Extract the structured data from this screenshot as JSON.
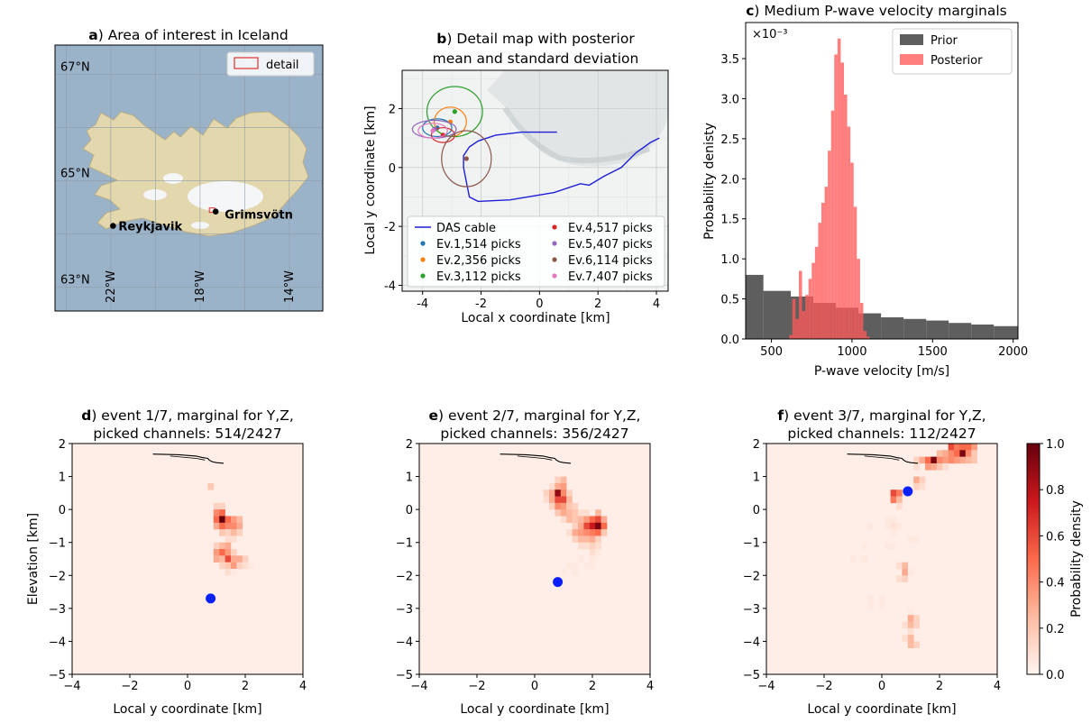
{
  "panel_a": {
    "letter": "a",
    "title": ") Area of interest in Iceland",
    "legend_label": "detail",
    "places": [
      {
        "name": "Reykjavik",
        "lon": -21.9,
        "lat": 64.15
      },
      {
        "name": "Grimsvötn",
        "lon": -17.3,
        "lat": 64.42
      }
    ],
    "lat_labels": [
      {
        "lat": 67,
        "label": "67°N"
      },
      {
        "lat": 65,
        "label": "65°N"
      },
      {
        "lat": 63,
        "label": "63°N"
      }
    ],
    "lon_labels": [
      {
        "lon": -22,
        "label": "22°W"
      },
      {
        "lon": -18,
        "label": "18°W"
      },
      {
        "lon": -14,
        "label": "14°W"
      }
    ],
    "colors": {
      "ocean": "#9ab3c9",
      "land": "#e2d7ad",
      "ice": "#f4f6f8",
      "detail_box": "#e03030"
    }
  },
  "chart_data": [
    {
      "id": "b",
      "type": "line",
      "letter": "b",
      "title_lines": [
        ") Detail map with posterior",
        "mean and standard deviation"
      ],
      "xlabel": "Local x coordinate [km]",
      "ylabel": "Local y coordinate [km]",
      "xlim": [
        -4.7,
        4.4
      ],
      "ylim": [
        -4.2,
        3.3
      ],
      "xticks": [
        -4,
        -2,
        0,
        2,
        4
      ],
      "yticks": [
        -4,
        -2,
        0,
        2
      ],
      "grid": true,
      "legend_position": "lower-center",
      "cable": {
        "name": "DAS cable",
        "color": "#1f1fd6",
        "x": [
          0.6,
          -0.6,
          -1.5,
          -2.1,
          -2.4,
          -2.6,
          -2.6,
          -2.5,
          -2.4,
          -2.1,
          -1.0,
          0.5,
          1.4,
          1.7,
          2.2,
          2.8,
          3.3,
          3.8,
          4.1
        ],
        "y": [
          1.2,
          1.2,
          1.1,
          0.9,
          0.7,
          0.4,
          0.0,
          -0.5,
          -1.0,
          -1.15,
          -1.1,
          -0.85,
          -0.55,
          -0.6,
          -0.3,
          0.0,
          0.5,
          0.85,
          1.0
        ]
      },
      "events": [
        {
          "name": "Ev.1,514 picks",
          "color": "#1f77b4",
          "x": -3.5,
          "y": 1.35,
          "rx": 0.5,
          "ry": 0.3
        },
        {
          "name": "Ev.2,356 picks",
          "color": "#ff7f0e",
          "x": -3.05,
          "y": 1.55,
          "rx": 0.55,
          "ry": 0.5
        },
        {
          "name": "Ev.3,112 picks",
          "color": "#2ca02c",
          "x": -2.9,
          "y": 1.9,
          "rx": 0.95,
          "ry": 0.85
        },
        {
          "name": "Ev.4,517 picks",
          "color": "#d62728",
          "x": -3.3,
          "y": 1.1,
          "rx": 0.4,
          "ry": 0.25
        },
        {
          "name": "Ev.5,407 picks",
          "color": "#9467bd",
          "x": -3.6,
          "y": 1.3,
          "rx": 0.75,
          "ry": 0.3
        },
        {
          "name": "Ev.6,114 picks",
          "color": "#8c564b",
          "x": -2.5,
          "y": 0.3,
          "rx": 0.85,
          "ry": 0.95
        },
        {
          "name": "Ev.7,407 picks",
          "color": "#e377c2",
          "x": -3.65,
          "y": 1.25,
          "rx": 0.5,
          "ry": 0.25
        }
      ]
    },
    {
      "id": "c",
      "type": "bar",
      "letter": "c",
      "title": ") Medium P-wave velocity marginals",
      "xlabel": "P-wave velocity [m/s]",
      "ylabel": "Probability denisty",
      "y_scale_label": "×10⁻³",
      "xlim": [
        340,
        2030
      ],
      "ylim": [
        0,
        3.95
      ],
      "xticks": [
        500,
        1000,
        1500,
        2000
      ],
      "yticks": [
        0.0,
        0.5,
        1.0,
        1.5,
        2.0,
        2.5,
        3.0,
        3.5
      ],
      "legend_position": "top-right",
      "prior": {
        "name": "Prior",
        "color": "#555555",
        "edges": [
          340,
          450,
          620,
          760,
          900,
          1040,
          1180,
          1320,
          1460,
          1600,
          1740,
          1880,
          2030
        ],
        "values": [
          0.8,
          0.6,
          0.53,
          0.45,
          0.39,
          0.32,
          0.27,
          0.25,
          0.23,
          0.2,
          0.18,
          0.16
        ]
      },
      "posterior": {
        "name": "Posterior",
        "color": "#ff5a5a",
        "bin_start": 610,
        "bin_width": 20,
        "values": [
          0.05,
          0.5,
          0.25,
          0.85,
          0.35,
          0.55,
          0.75,
          0.95,
          1.15,
          1.45,
          1.7,
          1.9,
          2.35,
          2.85,
          3.55,
          3.75,
          3.45,
          3.05,
          2.65,
          2.2,
          1.65,
          1.0,
          0.45,
          0.1,
          0.03
        ]
      }
    },
    {
      "id": "d",
      "type": "heatmap",
      "letter": "d",
      "title_lines": [
        ") event 1/7, marginal for Y,Z,",
        "picked channels: 514/2427"
      ],
      "xlabel": "Local y coordinate [km]",
      "ylabel": "Elevation [km]",
      "xlim": [
        -4,
        4
      ],
      "ylim": [
        -5,
        2
      ],
      "xticks": [
        -4,
        -2,
        0,
        2,
        4
      ],
      "yticks": [
        -5,
        -4,
        -3,
        -2,
        -1,
        0,
        1,
        2
      ],
      "background_density": 0.03,
      "true_location": {
        "x": 0.8,
        "y": -2.7
      },
      "cells": [
        [
          0.8,
          0.7,
          0.2
        ],
        [
          1.0,
          0.1,
          0.15
        ],
        [
          1.2,
          0.1,
          0.15
        ],
        [
          1.0,
          -0.1,
          0.4
        ],
        [
          1.2,
          -0.1,
          0.5
        ],
        [
          1.0,
          -0.3,
          0.5
        ],
        [
          1.2,
          -0.3,
          1.0
        ],
        [
          1.4,
          -0.3,
          0.5
        ],
        [
          1.6,
          -0.3,
          0.35
        ],
        [
          1.8,
          -0.3,
          0.25
        ],
        [
          1.0,
          -0.5,
          0.3
        ],
        [
          1.2,
          -0.5,
          0.5
        ],
        [
          1.4,
          -0.5,
          0.4
        ],
        [
          1.6,
          -0.5,
          0.4
        ],
        [
          1.8,
          -0.5,
          0.3
        ],
        [
          1.2,
          -0.7,
          0.2
        ],
        [
          1.4,
          -0.7,
          0.15
        ],
        [
          1.6,
          -0.7,
          0.25
        ],
        [
          1.8,
          -0.7,
          0.15
        ],
        [
          1.4,
          -0.9,
          0.1
        ],
        [
          1.6,
          -0.9,
          0.1
        ],
        [
          1.0,
          -1.1,
          0.15
        ],
        [
          1.2,
          -1.1,
          0.25
        ],
        [
          1.4,
          -1.1,
          0.3
        ],
        [
          1.0,
          -1.3,
          0.35
        ],
        [
          1.2,
          -1.3,
          0.5
        ],
        [
          1.4,
          -1.3,
          0.35
        ],
        [
          1.6,
          -1.3,
          0.15
        ],
        [
          1.0,
          -1.5,
          0.3
        ],
        [
          1.2,
          -1.5,
          0.25
        ],
        [
          1.4,
          -1.5,
          0.6
        ],
        [
          1.6,
          -1.5,
          0.3
        ],
        [
          1.8,
          -1.5,
          0.3
        ],
        [
          2.0,
          -1.5,
          0.15
        ],
        [
          1.2,
          -1.7,
          0.15
        ],
        [
          1.4,
          -1.7,
          0.2
        ],
        [
          1.6,
          -1.7,
          0.35
        ],
        [
          1.8,
          -1.7,
          0.15
        ],
        [
          2.0,
          -1.7,
          0.1
        ],
        [
          2.2,
          -1.7,
          0.05
        ],
        [
          1.4,
          -1.9,
          0.1
        ],
        [
          1.6,
          -1.9,
          0.05
        ]
      ]
    },
    {
      "id": "e",
      "type": "heatmap",
      "letter": "e",
      "title_lines": [
        ") event 2/7, marginal for Y,Z,",
        "picked channels: 356/2427"
      ],
      "xlabel": "Local y coordinate [km]",
      "ylabel": "",
      "xlim": [
        -4,
        4
      ],
      "ylim": [
        -5,
        2
      ],
      "xticks": [
        -4,
        -2,
        0,
        2,
        4
      ],
      "yticks": [
        -5,
        -4,
        -3,
        -2,
        -1,
        0,
        1,
        2
      ],
      "background_density": 0.03,
      "true_location": {
        "x": 0.8,
        "y": -2.2
      },
      "cells": [
        [
          0.8,
          0.9,
          0.15
        ],
        [
          1.0,
          0.9,
          0.25
        ],
        [
          0.6,
          0.7,
          0.1
        ],
        [
          0.8,
          0.7,
          0.3
        ],
        [
          1.0,
          0.7,
          0.35
        ],
        [
          0.4,
          0.5,
          0.15
        ],
        [
          0.6,
          0.5,
          0.3
        ],
        [
          0.8,
          0.5,
          0.9
        ],
        [
          1.0,
          0.5,
          0.4
        ],
        [
          1.2,
          0.5,
          0.15
        ],
        [
          0.4,
          0.3,
          0.1
        ],
        [
          0.6,
          0.3,
          0.3
        ],
        [
          0.8,
          0.3,
          0.6
        ],
        [
          1.0,
          0.3,
          0.6
        ],
        [
          1.2,
          0.3,
          0.25
        ],
        [
          0.6,
          0.1,
          0.15
        ],
        [
          0.8,
          0.1,
          0.4
        ],
        [
          1.0,
          0.1,
          0.35
        ],
        [
          1.2,
          0.1,
          0.2
        ],
        [
          1.4,
          0.1,
          0.15
        ],
        [
          0.8,
          -0.1,
          0.2
        ],
        [
          1.0,
          -0.1,
          0.3
        ],
        [
          1.2,
          -0.1,
          0.25
        ],
        [
          1.4,
          -0.1,
          0.2
        ],
        [
          1.6,
          -0.1,
          0.1
        ],
        [
          1.8,
          -0.1,
          0.1
        ],
        [
          2.2,
          -0.1,
          0.25
        ],
        [
          1.0,
          -0.3,
          0.1
        ],
        [
          1.2,
          -0.3,
          0.25
        ],
        [
          1.4,
          -0.3,
          0.2
        ],
        [
          1.6,
          -0.3,
          0.25
        ],
        [
          1.8,
          -0.3,
          0.35
        ],
        [
          2.0,
          -0.3,
          0.5
        ],
        [
          2.2,
          -0.3,
          0.6
        ],
        [
          2.4,
          -0.3,
          0.3
        ],
        [
          1.4,
          -0.5,
          0.15
        ],
        [
          1.6,
          -0.5,
          0.3
        ],
        [
          1.8,
          -0.5,
          0.6
        ],
        [
          2.0,
          -0.5,
          0.75
        ],
        [
          2.2,
          -0.5,
          0.95
        ],
        [
          2.4,
          -0.5,
          0.5
        ],
        [
          1.2,
          -0.7,
          0.1
        ],
        [
          1.4,
          -0.7,
          0.3
        ],
        [
          1.6,
          -0.7,
          0.35
        ],
        [
          1.8,
          -0.7,
          0.4
        ],
        [
          2.0,
          -0.7,
          0.45
        ],
        [
          2.2,
          -0.7,
          0.5
        ],
        [
          2.4,
          -0.7,
          0.2
        ],
        [
          1.4,
          -0.9,
          0.15
        ],
        [
          1.6,
          -0.9,
          0.25
        ],
        [
          1.8,
          -0.9,
          0.25
        ],
        [
          2.0,
          -0.9,
          0.3
        ],
        [
          2.2,
          -0.9,
          0.15
        ],
        [
          1.6,
          -1.1,
          0.1
        ],
        [
          1.8,
          -1.1,
          0.1
        ],
        [
          2.0,
          -1.1,
          0.15
        ],
        [
          2.2,
          -1.1,
          0.1
        ],
        [
          2.0,
          -1.3,
          0.1
        ],
        [
          2.2,
          -1.3,
          0.05
        ],
        [
          1.6,
          -1.5,
          0.05
        ],
        [
          2.0,
          -1.5,
          0.05
        ],
        [
          1.2,
          -1.7,
          0.05
        ],
        [
          1.4,
          -1.7,
          0.05
        ],
        [
          1.8,
          -1.7,
          0.05
        ],
        [
          2.0,
          -1.7,
          0.05
        ],
        [
          1.0,
          -1.9,
          0.05
        ],
        [
          1.4,
          -1.9,
          0.05
        ]
      ]
    },
    {
      "id": "f",
      "type": "heatmap",
      "letter": "f",
      "title_lines": [
        ") event 3/7, marginal for Y,Z,",
        "picked channels: 112/2427"
      ],
      "xlabel": "Local y coordinate [km]",
      "ylabel": "",
      "colorbar_label": "Probability density",
      "colorbar_ticks": [
        0.0,
        0.2,
        0.4,
        0.6,
        0.8,
        1.0
      ],
      "xlim": [
        -4,
        4
      ],
      "ylim": [
        -5,
        2
      ],
      "xticks": [
        -4,
        -2,
        0,
        2,
        4
      ],
      "yticks": [
        -5,
        -4,
        -3,
        -2,
        -1,
        0,
        1,
        2
      ],
      "background_density": 0.03,
      "true_location": {
        "x": 0.9,
        "y": 0.55
      },
      "cells": [
        [
          2.4,
          1.9,
          0.6
        ],
        [
          2.6,
          1.9,
          0.45
        ],
        [
          2.8,
          1.9,
          0.5
        ],
        [
          3.0,
          1.9,
          0.5
        ],
        [
          3.2,
          1.9,
          0.35
        ],
        [
          2.0,
          1.7,
          0.25
        ],
        [
          2.2,
          1.7,
          0.3
        ],
        [
          2.4,
          1.7,
          0.4
        ],
        [
          2.6,
          1.7,
          0.5
        ],
        [
          2.8,
          1.7,
          0.95
        ],
        [
          3.0,
          1.7,
          0.4
        ],
        [
          3.2,
          1.7,
          0.2
        ],
        [
          1.2,
          1.5,
          0.15
        ],
        [
          1.4,
          1.5,
          0.3
        ],
        [
          1.6,
          1.5,
          0.5
        ],
        [
          1.8,
          1.5,
          0.95
        ],
        [
          2.0,
          1.5,
          0.4
        ],
        [
          2.2,
          1.5,
          0.35
        ],
        [
          2.4,
          1.5,
          0.4
        ],
        [
          2.6,
          1.5,
          0.35
        ],
        [
          2.8,
          1.5,
          0.3
        ],
        [
          3.0,
          1.5,
          0.25
        ],
        [
          3.2,
          1.5,
          0.2
        ],
        [
          1.2,
          1.3,
          0.1
        ],
        [
          1.6,
          1.3,
          0.35
        ],
        [
          1.8,
          1.3,
          0.3
        ],
        [
          2.0,
          1.3,
          0.2
        ],
        [
          2.2,
          1.3,
          0.1
        ],
        [
          1.2,
          0.9,
          0.3
        ],
        [
          1.4,
          0.9,
          0.15
        ],
        [
          1.2,
          0.7,
          0.15
        ],
        [
          1.4,
          0.7,
          0.1
        ],
        [
          0.4,
          0.5,
          0.6
        ],
        [
          0.6,
          0.5,
          0.45
        ],
        [
          0.4,
          0.3,
          0.45
        ],
        [
          0.6,
          0.3,
          0.25
        ],
        [
          0.6,
          0.1,
          0.1
        ],
        [
          0.2,
          -0.3,
          0.05
        ],
        [
          0.4,
          -0.3,
          0.05
        ],
        [
          -0.4,
          -0.5,
          0.05
        ],
        [
          0.2,
          -0.5,
          0.05
        ],
        [
          0.4,
          -0.5,
          0.08
        ],
        [
          0.6,
          -0.5,
          0.05
        ],
        [
          0.4,
          -0.7,
          0.05
        ],
        [
          1.0,
          -0.9,
          0.05
        ],
        [
          1.2,
          -0.9,
          0.05
        ],
        [
          -0.6,
          -1.1,
          0.05
        ],
        [
          0.2,
          -1.1,
          0.05
        ],
        [
          0.4,
          -1.1,
          0.05
        ],
        [
          -1.0,
          -1.5,
          0.05
        ],
        [
          -0.6,
          -1.5,
          0.05
        ],
        [
          0.6,
          -1.7,
          0.1
        ],
        [
          0.8,
          -1.7,
          0.25
        ],
        [
          0.8,
          -1.9,
          0.3
        ],
        [
          1.0,
          -1.9,
          0.05
        ],
        [
          0.6,
          -2.1,
          0.1
        ],
        [
          0.8,
          -2.1,
          0.15
        ],
        [
          -0.4,
          -2.7,
          0.05
        ],
        [
          0.0,
          -2.7,
          0.05
        ],
        [
          -0.4,
          -2.9,
          0.05
        ],
        [
          0.0,
          -2.9,
          0.05
        ],
        [
          1.0,
          -3.1,
          0.05
        ],
        [
          1.0,
          -3.3,
          0.3
        ],
        [
          1.2,
          -3.3,
          0.15
        ],
        [
          0.8,
          -3.5,
          0.1
        ],
        [
          1.0,
          -3.5,
          0.25
        ],
        [
          1.2,
          -3.5,
          0.15
        ],
        [
          1.0,
          -3.7,
          0.1
        ],
        [
          0.8,
          -3.9,
          0.1
        ],
        [
          1.0,
          -3.9,
          0.25
        ],
        [
          1.0,
          -4.1,
          0.25
        ],
        [
          1.2,
          -4.1,
          0.15
        ]
      ]
    }
  ]
}
